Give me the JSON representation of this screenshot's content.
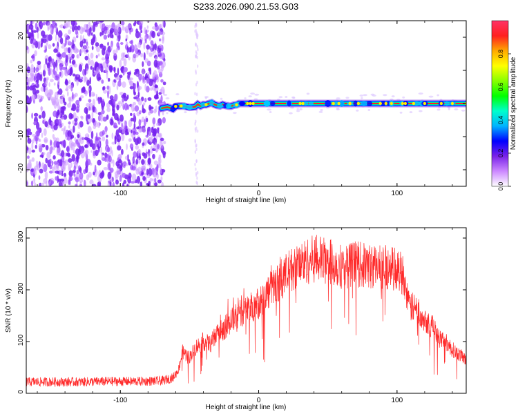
{
  "title": "S233.2026.090.21.53.G03",
  "chart_data": [
    {
      "type": "heatmap",
      "xlabel": "Height of straight line (km)",
      "ylabel": "Frequency (Hz)",
      "xlim": [
        -168,
        150
      ],
      "ylim": [
        -25,
        25
      ],
      "x_ticks": [
        -100,
        0,
        100
      ],
      "y_ticks": [
        -20,
        -10,
        0,
        10,
        20
      ],
      "grid": false,
      "noise_region_x": [
        -168,
        -68
      ],
      "signal_start_x": -70,
      "carrier_freq": 0,
      "colorbar": {
        "label": "Normalized spectral amplitude",
        "range": [
          0,
          1
        ],
        "ticks": [
          0.0,
          0.2,
          0.4,
          0.6,
          0.8
        ],
        "tick_labels": [
          "0.0",
          "0.2",
          "0.4",
          "0.6",
          "0.8"
        ],
        "colors": [
          "#ffffff",
          "#cc88ff",
          "#7a22e8",
          "#0000ff",
          "#00b4ff",
          "#00ffcc",
          "#00ff00",
          "#88ff00",
          "#ffff00",
          "#ffaa00",
          "#ff2020",
          "#ff3366"
        ]
      }
    },
    {
      "type": "line",
      "xlabel": "Height of straight line (km)",
      "ylabel": "SNR (10 * v/v)",
      "xlim": [
        -168,
        150
      ],
      "ylim": [
        0,
        320
      ],
      "x_ticks": [
        -100,
        0,
        100
      ],
      "y_ticks": [
        0,
        100,
        200,
        300
      ],
      "grid": false,
      "color": "#ff2a2a",
      "series": [
        {
          "x": [
            -168,
            -150,
            -130,
            -110,
            -90,
            -70,
            -62,
            -58,
            -55,
            -50,
            -45,
            -40,
            -35,
            -30,
            -25,
            -20,
            -10,
            0,
            10,
            20,
            25,
            30,
            40,
            50,
            60,
            70,
            80,
            90,
            100,
            105,
            108,
            115,
            125,
            135,
            140,
            145,
            150
          ],
          "values": [
            22,
            22,
            22,
            23,
            23,
            24,
            30,
            45,
            80,
            70,
            90,
            100,
            95,
            115,
            125,
            140,
            160,
            175,
            205,
            230,
            240,
            250,
            260,
            255,
            245,
            250,
            245,
            245,
            240,
            230,
            170,
            160,
            130,
            100,
            85,
            75,
            65
          ]
        }
      ]
    }
  ]
}
